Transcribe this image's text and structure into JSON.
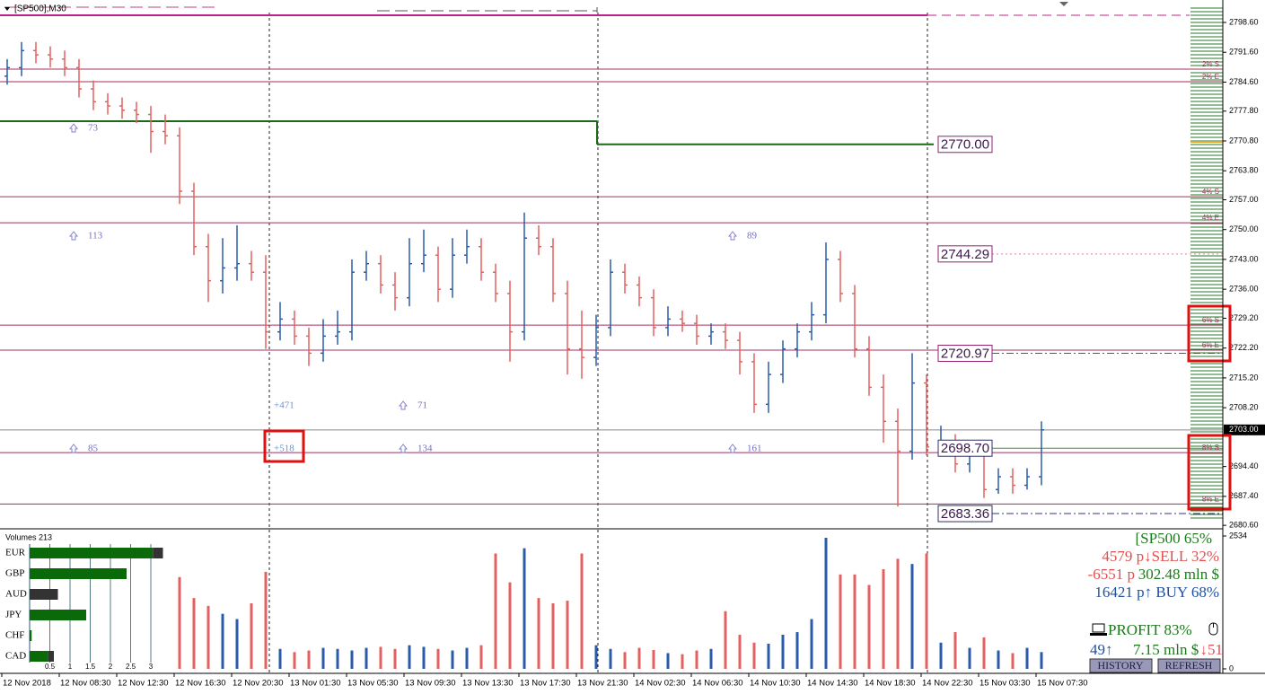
{
  "title": "[SP500],M30",
  "chart_data": [
    {
      "type": "ohlc",
      "up_color": "#2a5caa",
      "down_color": "#e46060",
      "open": [
        2786,
        2788,
        2792,
        2791,
        2790,
        2788,
        2783,
        2780,
        2779,
        2778,
        2777,
        2773,
        2772,
        2759,
        2746,
        2738,
        2741,
        2742,
        2740,
        2726,
        2729,
        2725,
        2721,
        2725,
        2726,
        2740,
        2742,
        2737,
        2734,
        2742,
        2744,
        2736,
        2744,
        2746,
        2740,
        2735,
        2726,
        2748,
        2746,
        2735,
        2722,
        2720,
        2727,
        2740,
        2737,
        2734,
        2727,
        2729,
        2728,
        2725,
        2726,
        2724,
        2719,
        2709,
        2716,
        2722,
        2726,
        2730,
        2743,
        2735,
        2722,
        2713,
        2705,
        2698,
        2714,
        2699,
        2700,
        2695,
        2697,
        2689,
        2692,
        2690,
        2692
      ],
      "high": [
        2790,
        2794,
        2794,
        2793,
        2792,
        2790,
        2785,
        2782,
        2781,
        2780,
        2779,
        2777,
        2774,
        2761,
        2749,
        2748,
        2751,
        2745,
        2744,
        2733,
        2731,
        2727,
        2729,
        2731,
        2743,
        2745,
        2744,
        2740,
        2748,
        2750,
        2746,
        2748,
        2750,
        2748,
        2742,
        2738,
        2754,
        2751,
        2748,
        2738,
        2731,
        2730,
        2743,
        2742,
        2739,
        2736,
        2732,
        2731,
        2730,
        2728,
        2728,
        2726,
        2721,
        2719,
        2724,
        2728,
        2733,
        2747,
        2745,
        2737,
        2725,
        2716,
        2708,
        2721,
        2716,
        2704,
        2702,
        2700,
        2699,
        2694,
        2694,
        2694,
        2705
      ],
      "low": [
        2784,
        2786,
        2789,
        2788,
        2786,
        2781,
        2778,
        2777,
        2776,
        2775,
        2768,
        2770,
        2756,
        2744,
        2733,
        2735,
        2738,
        2738,
        2722,
        2724,
        2723,
        2718,
        2719,
        2723,
        2724,
        2738,
        2735,
        2731,
        2732,
        2740,
        2733,
        2734,
        2742,
        2738,
        2733,
        2719,
        2724,
        2744,
        2733,
        2716,
        2715,
        2718,
        2725,
        2735,
        2732,
        2725,
        2725,
        2726,
        2723,
        2723,
        2722,
        2716,
        2707,
        2707,
        2714,
        2720,
        2724,
        2728,
        2733,
        2720,
        2711,
        2700,
        2685,
        2696,
        2697,
        2697,
        2693,
        2693,
        2687,
        2688,
        2688,
        2689,
        2690
      ],
      "close": [
        2788,
        2792,
        2791,
        2790,
        2788,
        2783,
        2780,
        2779,
        2778,
        2777,
        2773,
        2772,
        2759,
        2746,
        2738,
        2741,
        2742,
        2740,
        2726,
        2729,
        2725,
        2721,
        2725,
        2726,
        2740,
        2742,
        2737,
        2734,
        2742,
        2744,
        2736,
        2744,
        2746,
        2740,
        2735,
        2726,
        2748,
        2746,
        2735,
        2722,
        2720,
        2727,
        2740,
        2737,
        2734,
        2727,
        2729,
        2728,
        2725,
        2726,
        2724,
        2719,
        2709,
        2716,
        2722,
        2726,
        2730,
        2743,
        2735,
        2722,
        2713,
        2705,
        2698,
        2714,
        2699,
        2700,
        2695,
        2697,
        2689,
        2692,
        2690,
        2692,
        2703
      ],
      "ylim": [
        2680,
        2803.87
      ],
      "yticks": [
        {
          "value": 2798.6,
          "label": "2798.60"
        },
        {
          "value": 2791.6,
          "label": "2791.60"
        },
        {
          "value": 2784.6,
          "label": "2784.60"
        },
        {
          "value": 2777.8,
          "label": "2777.80"
        },
        {
          "value": 2770.8,
          "label": "2770.80"
        },
        {
          "value": 2763.8,
          "label": "2763.80"
        },
        {
          "value": 2757,
          "label": "2757.00"
        },
        {
          "value": 2750,
          "label": "2750.00"
        },
        {
          "value": 2743,
          "label": "2743.00"
        },
        {
          "value": 2736,
          "label": "2736.00"
        },
        {
          "value": 2729.2,
          "label": "2729.20"
        },
        {
          "value": 2722.2,
          "label": "2722.20"
        },
        {
          "value": 2715.2,
          "label": "2715.20"
        },
        {
          "value": 2708.2,
          "label": "2708.20"
        },
        {
          "value": 2694.4,
          "label": "2694.40"
        },
        {
          "value": 2687.4,
          "label": "2687.40"
        },
        {
          "value": 2680.6,
          "label": "2680.60"
        }
      ],
      "last_price": {
        "value": 2703,
        "label": "2703.00"
      },
      "levels": [
        {
          "value": 2800.3,
          "color": "#c0208a"
        },
        {
          "value": 2775.42,
          "color": "#1a6a1a"
        },
        {
          "value": 2770,
          "label": "2770.00",
          "color": "#1a6a1a"
        },
        {
          "value": 2744.29,
          "label": "2744.29",
          "color": "#e080a8"
        },
        {
          "value": 2720.97,
          "label": "2720.97",
          "color": "#c02080"
        },
        {
          "value": 2698.7,
          "label": "2698.70",
          "color": "#4a8a2a"
        },
        {
          "value": 2683.36,
          "label": "2683.36",
          "color": "#303080"
        }
      ],
      "zone_color": "#a03060",
      "zones": [
        {
          "value": 2787.64,
          "label": "2% S"
        },
        {
          "value": 2784.69,
          "label": "2% E"
        },
        {
          "value": 2757.72,
          "label": "4% S"
        },
        {
          "value": 2751.61,
          "label": "4% E"
        },
        {
          "value": 2727.59,
          "label": "6% S"
        },
        {
          "value": 2721.7,
          "label": "6% E"
        },
        {
          "value": 2697.67,
          "label": "8% S"
        },
        {
          "value": 2685.6,
          "label": "8% E"
        }
      ],
      "annotations": [
        "73",
        "113",
        "89",
        "85",
        "+471",
        "71",
        "+518",
        "134",
        "161"
      ]
    },
    {
      "type": "volume",
      "title": "Volumes 213",
      "values": [
        null,
        null,
        null,
        null,
        null,
        null,
        null,
        null,
        null,
        null,
        null,
        null,
        1750,
        1350,
        1200,
        1050,
        950,
        1250,
        1850,
        380,
        320,
        350,
        400,
        380,
        350,
        400,
        420,
        380,
        450,
        420,
        380,
        350,
        400,
        450,
        2200,
        1650,
        2300,
        1350,
        1250,
        1300,
        2200,
        450,
        380,
        320,
        400,
        360,
        300,
        280,
        350,
        380,
        1100,
        650,
        500,
        480,
        650,
        700,
        950,
        2500,
        1800,
        1800,
        1600,
        1900,
        2100,
        2000,
        2200,
        500,
        700,
        400,
        600,
        350,
        300,
        400,
        320
      ],
      "ylim": [
        -86,
        2654
      ],
      "yticks": [
        2534,
        0
      ]
    },
    {
      "type": "hbar",
      "categories": [
        "EUR",
        "GBP",
        "AUD",
        "JPY",
        "CHF",
        "CAD"
      ],
      "series": [
        {
          "color": "#0a6a0a",
          "values": [
            3.05,
            2.4,
            0,
            1.4,
            0.05,
            0.45
          ]
        },
        {
          "color": "#333333",
          "values": [
            0.25,
            0,
            0.7,
            0,
            0,
            0.15
          ]
        }
      ],
      "xlim": [
        0,
        3.5
      ],
      "xticks": [
        0.5,
        1,
        1.5,
        2,
        2.5,
        3
      ]
    }
  ],
  "time_labels": [
    "12 Nov 2018",
    "12 Nov 08:30",
    "12 Nov 12:30",
    "12 Nov 16:30",
    "12 Nov 20:30",
    "13 Nov 01:30",
    "13 Nov 05:30",
    "13 Nov 09:30",
    "13 Nov 13:30",
    "13 Nov 17:30",
    "13 Nov 21:30",
    "14 Nov 02:30",
    "14 Nov 06:30",
    "14 Nov 10:30",
    "14 Nov 14:30",
    "14 Nov 18:30",
    "14 Nov 22:30",
    "15 Nov 03:30",
    "15 Nov 07:30"
  ],
  "info": {
    "symbol": "[SP500 65%",
    "sell": "4579 p↓SELL 32%",
    "pips": "-6551 p",
    "money": "302.48 mln $",
    "buy": "16421 p↑ BUY 68%",
    "profit": "PROFIT 83%",
    "up": "49↑",
    "amount": "7.15 mln $",
    "down": "↓51",
    "buttons": [
      "HISTORY",
      "REFRESH"
    ]
  }
}
